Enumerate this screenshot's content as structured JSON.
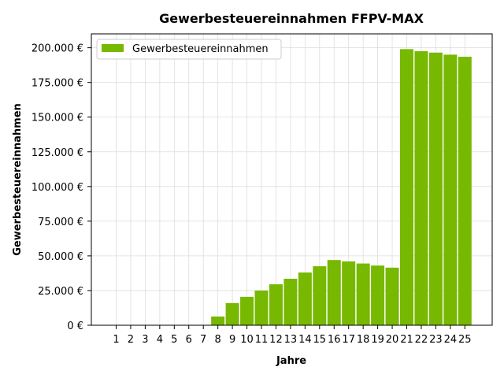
{
  "chart_data": {
    "type": "bar",
    "title": "Gewerbesteuereinnahmen FFPV-MAX",
    "xlabel": "Jahre",
    "ylabel": "Gewerbesteuereinnahmen",
    "categories": [
      "1",
      "2",
      "3",
      "4",
      "5",
      "6",
      "7",
      "8",
      "9",
      "10",
      "11",
      "12",
      "13",
      "14",
      "15",
      "16",
      "17",
      "18",
      "19",
      "20",
      "21",
      "22",
      "23",
      "24",
      "25"
    ],
    "series": [
      {
        "name": "Gewerbesteuereinnahmen",
        "color": "#77b800",
        "values": [
          0,
          0,
          0,
          0,
          0,
          0,
          0,
          6300,
          16000,
          20500,
          25000,
          29500,
          33500,
          38000,
          42500,
          47000,
          46000,
          44500,
          43000,
          41500,
          199000,
          197500,
          196500,
          195000,
          193500
        ]
      }
    ],
    "ylim": [
      0,
      210000
    ],
    "yticks": [
      {
        "value": 0,
        "label": "0 €"
      },
      {
        "value": 25000,
        "label": "25.000 €"
      },
      {
        "value": 50000,
        "label": "50.000 €"
      },
      {
        "value": 75000,
        "label": "75.000 €"
      },
      {
        "value": 100000,
        "label": "100.000 €"
      },
      {
        "value": 125000,
        "label": "125.000 €"
      },
      {
        "value": 150000,
        "label": "150.000 €"
      },
      {
        "value": 175000,
        "label": "175.000 €"
      },
      {
        "value": 200000,
        "label": "200.000 €"
      }
    ],
    "grid": true,
    "legend_position": "top-left"
  }
}
